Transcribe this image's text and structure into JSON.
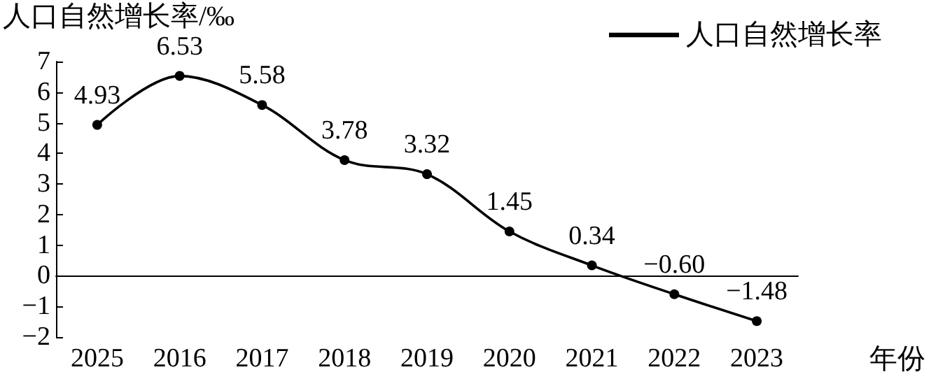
{
  "chart_data": {
    "type": "line",
    "ylabel": "人口自然增长率/‰",
    "xlabel": "年份",
    "categories": [
      "2025",
      "2016",
      "2017",
      "2018",
      "2019",
      "2020",
      "2021",
      "2022",
      "2023"
    ],
    "series": [
      {
        "name": "人口自然增长率",
        "color": "#000000",
        "values": [
          4.93,
          6.53,
          5.58,
          3.78,
          3.32,
          1.45,
          0.34,
          -0.6,
          -1.48
        ],
        "value_labels": [
          "4.93",
          "6.53",
          "5.58",
          "3.78",
          "3.32",
          "1.45",
          "0.34",
          "−0.60",
          "−1.48"
        ]
      }
    ],
    "ylim": [
      -2,
      7
    ],
    "yticks": [
      -2,
      -1,
      0,
      1,
      2,
      3,
      4,
      5,
      6,
      7
    ],
    "grid": false,
    "legend": "top right",
    "marker": "circle",
    "line_style": "solid"
  }
}
